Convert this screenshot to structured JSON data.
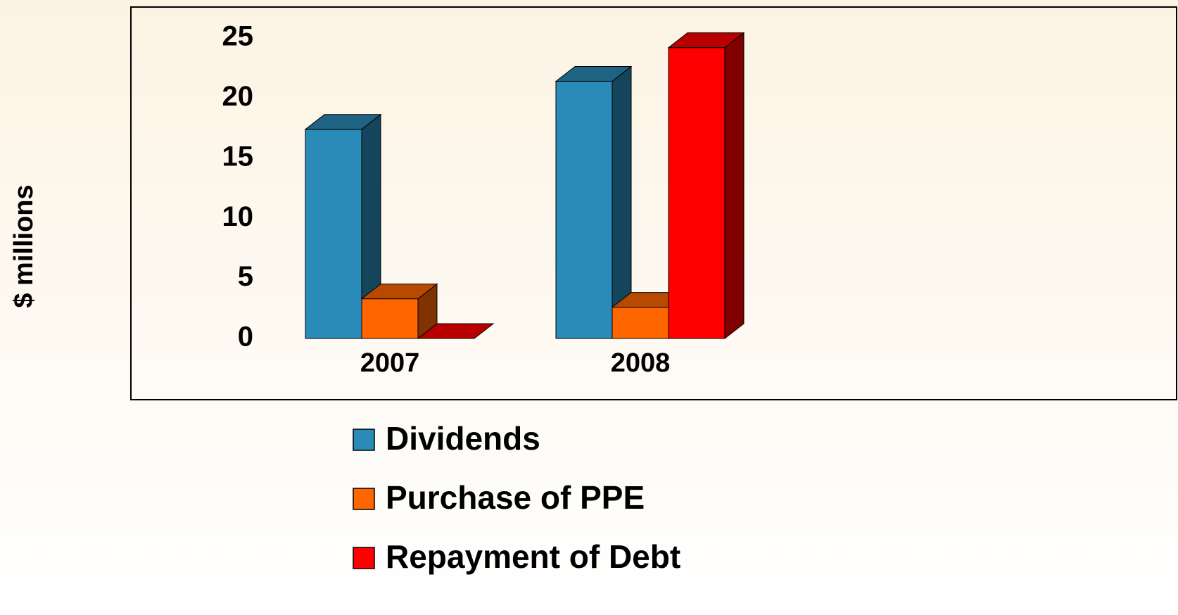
{
  "chart_data": {
    "type": "bar3d",
    "y_label": "$ millions",
    "categories": [
      "2007",
      "2008"
    ],
    "series": [
      {
        "name": "Dividends",
        "color": "#2a8ab8",
        "values": [
          17.4,
          21.4
        ]
      },
      {
        "name": "Purchase of PPE",
        "color": "#ff6600",
        "values": [
          3.3,
          2.6
        ]
      },
      {
        "name": "Repayment of Debt",
        "color": "#ff0000",
        "values": [
          0,
          24.2
        ]
      }
    ],
    "ylim": [
      0,
      25
    ],
    "yticks": [
      0,
      5,
      10,
      15,
      20,
      25
    ],
    "grid": false,
    "legend": "bottom"
  }
}
